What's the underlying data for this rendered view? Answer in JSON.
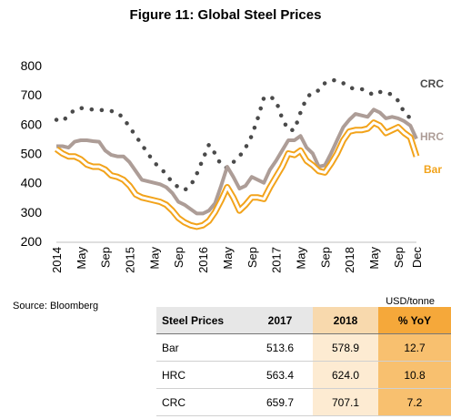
{
  "title": "Figure 11: Global Steel Prices",
  "source": "Source: Bloomberg",
  "unit": "USD/tonne",
  "colors": {
    "bar": "#f2a31b",
    "hrc": "#ad9d97",
    "crc": "#4a4a4a"
  },
  "chart_data": {
    "type": "line",
    "title": "Figure 11: Global Steel Prices",
    "xlabel": "",
    "ylabel": "",
    "ylim": [
      200,
      800
    ],
    "yticks": [
      200,
      300,
      400,
      500,
      600,
      700,
      800
    ],
    "grid": false,
    "x_labels": [
      "2014",
      "May",
      "Sep",
      "2015",
      "May",
      "Sep",
      "2016",
      "May",
      "Sep",
      "2017",
      "May",
      "Sep",
      "2018",
      "May",
      "Sep",
      "Dec"
    ],
    "x_label_months": [
      0,
      4,
      8,
      12,
      16,
      20,
      24,
      28,
      32,
      36,
      40,
      44,
      48,
      52,
      56,
      59
    ],
    "months": [
      "2014-01",
      "2014-02",
      "2014-03",
      "2014-04",
      "2014-05",
      "2014-06",
      "2014-07",
      "2014-08",
      "2014-09",
      "2014-10",
      "2014-11",
      "2014-12",
      "2015-01",
      "2015-02",
      "2015-03",
      "2015-04",
      "2015-05",
      "2015-06",
      "2015-07",
      "2015-08",
      "2015-09",
      "2015-10",
      "2015-11",
      "2015-12",
      "2016-01",
      "2016-02",
      "2016-03",
      "2016-04",
      "2016-05",
      "2016-06",
      "2016-07",
      "2016-08",
      "2016-09",
      "2016-10",
      "2016-11",
      "2016-12",
      "2017-01",
      "2017-02",
      "2017-03",
      "2017-04",
      "2017-05",
      "2017-06",
      "2017-07",
      "2017-08",
      "2017-09",
      "2017-10",
      "2017-11",
      "2017-12",
      "2018-01",
      "2018-02",
      "2018-03",
      "2018-04",
      "2018-05",
      "2018-06",
      "2018-07",
      "2018-08",
      "2018-09",
      "2018-10",
      "2018-11",
      "2018-12"
    ],
    "series": [
      {
        "name": "CRC",
        "style": "dotted",
        "values": [
          615,
          610,
          630,
          650,
          655,
          652,
          650,
          648,
          648,
          645,
          640,
          620,
          590,
          560,
          530,
          500,
          470,
          450,
          430,
          400,
          385,
          375,
          390,
          430,
          480,
          530,
          500,
          460,
          450,
          470,
          490,
          520,
          560,
          620,
          690,
          695,
          680,
          620,
          580,
          580,
          640,
          690,
          710,
          715,
          740,
          750,
          750,
          740,
          725,
          720,
          720,
          710,
          700,
          710,
          710,
          700,
          680,
          640,
          620,
          610
        ]
      },
      {
        "name": "HRC",
        "style": "solid",
        "values": [
          525,
          525,
          520,
          540,
          545,
          545,
          542,
          540,
          510,
          495,
          490,
          490,
          470,
          440,
          410,
          405,
          400,
          395,
          385,
          365,
          335,
          325,
          310,
          295,
          295,
          305,
          330,
          390,
          455,
          420,
          380,
          390,
          420,
          410,
          400,
          445,
          475,
          510,
          545,
          545,
          560,
          520,
          500,
          455,
          460,
          500,
          545,
          590,
          615,
          635,
          630,
          625,
          650,
          640,
          620,
          625,
          620,
          610,
          595,
          550
        ]
      },
      {
        "name": "Bar",
        "style": "solid",
        "values": [
          515,
          500,
          490,
          490,
          480,
          462,
          455,
          455,
          445,
          425,
          420,
          410,
          390,
          360,
          350,
          345,
          340,
          335,
          325,
          305,
          280,
          265,
          255,
          250,
          255,
          270,
          300,
          340,
          385,
          350,
          305,
          325,
          350,
          350,
          345,
          385,
          420,
          455,
          500,
          495,
          510,
          475,
          460,
          440,
          435,
          465,
          500,
          545,
          575,
          580,
          580,
          585,
          605,
          595,
          570,
          580,
          590,
          570,
          555,
          490
        ]
      }
    ]
  },
  "table": {
    "headers": [
      "Steel Prices",
      "2017",
      "2018",
      "% YoY"
    ],
    "rows": [
      [
        "Bar",
        "513.6",
        "578.9",
        "12.7"
      ],
      [
        "HRC",
        "563.4",
        "624.0",
        "10.8"
      ],
      [
        "CRC",
        "659.7",
        "707.1",
        "7.2"
      ]
    ]
  }
}
